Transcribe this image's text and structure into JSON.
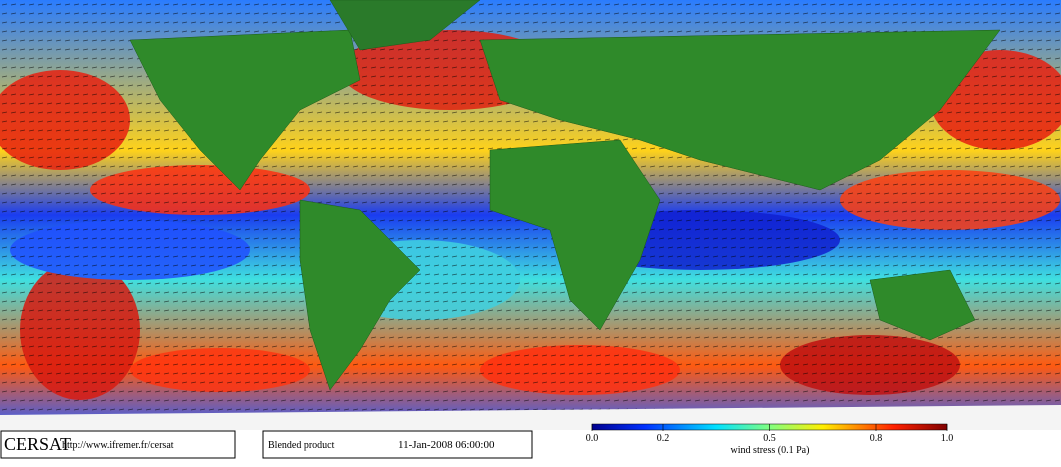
{
  "footer": {
    "logo": "CERSAT",
    "url": "http://www.ifremer.fr/cersat",
    "product": "Blended product",
    "date": "11-Jan-2008 06:00:00"
  },
  "colorbar": {
    "title": "wind stress (0.1 Pa)",
    "range": [
      0,
      1
    ],
    "ticks": [
      {
        "value": 0,
        "label": "0.0"
      },
      0.2,
      0.5,
      0.8,
      {
        "value": 1,
        "label": "1.0"
      }
    ]
  }
}
